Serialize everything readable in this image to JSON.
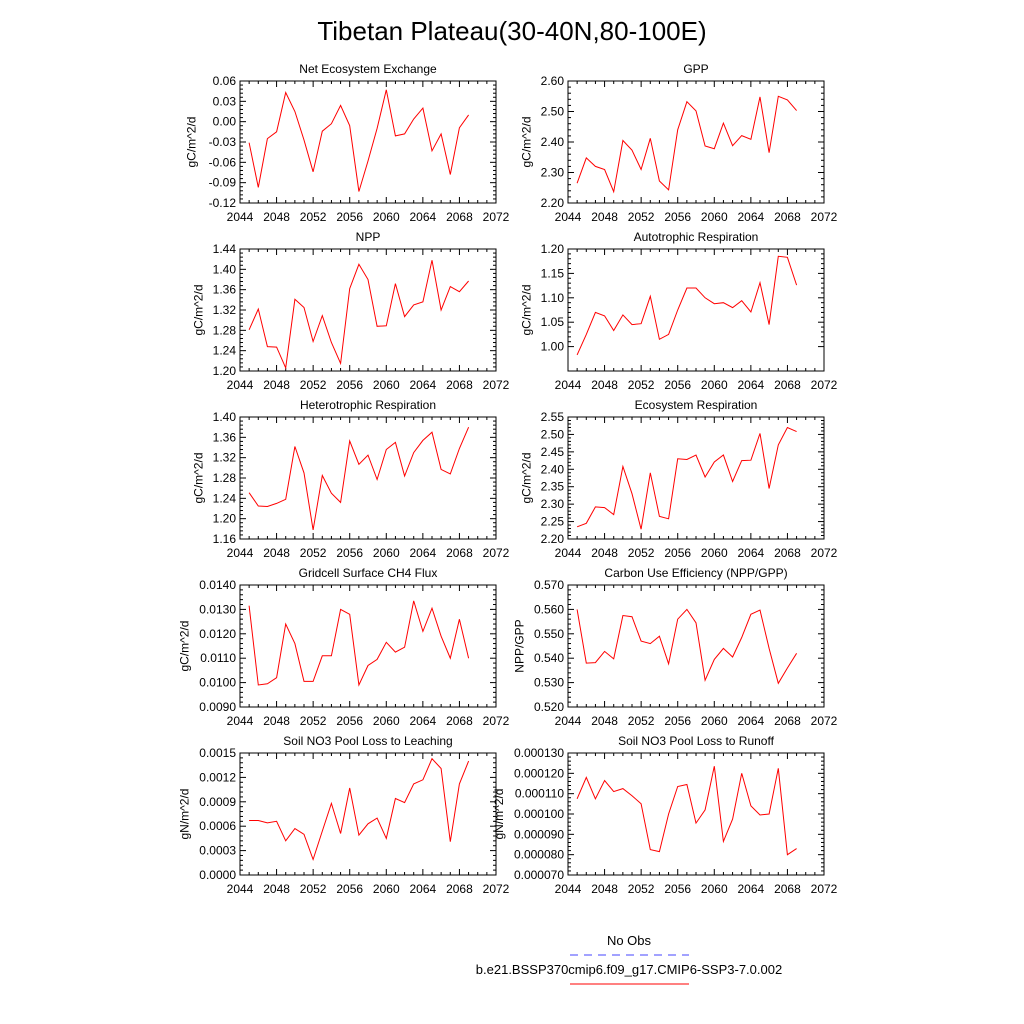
{
  "title": "Tibetan Plateau(30-40N,80-100E)",
  "colors": {
    "model": "#ff0000",
    "obs": "#4444ff",
    "axis": "#000000"
  },
  "legend": {
    "entries": [
      {
        "label": "No Obs",
        "color": "#4444ff",
        "style": "dashed"
      },
      {
        "label": "b.e21.BSSP370cmip6.f09_g17.CMIP6-SSP3-7.0.002",
        "color": "#ff0000",
        "style": "solid"
      }
    ]
  },
  "chart_data": [
    {
      "type": "line",
      "title": "Net Ecosystem Exchange",
      "xlabel": "",
      "ylabel": "gC/m^2/d",
      "xlim": [
        2044,
        2072
      ],
      "ylim": [
        -0.12,
        0.06
      ],
      "xticks": [
        "2044",
        "2048",
        "2052",
        "2056",
        "2060",
        "2064",
        "2068",
        "2072"
      ],
      "yticks": [
        "-0.12",
        "-0.09",
        "-0.06",
        "-0.03",
        "0.00",
        "0.03",
        "0.06"
      ],
      "x": [
        2045,
        2046,
        2047,
        2048,
        2049,
        2050,
        2051,
        2052,
        2053,
        2054,
        2055,
        2056,
        2057,
        2058,
        2059,
        2060,
        2061,
        2062,
        2063,
        2064,
        2065,
        2066,
        2067,
        2068,
        2069
      ],
      "values": [
        -0.031,
        -0.097,
        -0.025,
        -0.015,
        0.043,
        0.015,
        -0.027,
        -0.074,
        -0.014,
        -0.003,
        0.024,
        -0.006,
        -0.103,
        -0.058,
        -0.01,
        0.047,
        -0.021,
        -0.018,
        0.004,
        0.02,
        -0.043,
        -0.018,
        -0.078,
        -0.009,
        0.01
      ]
    },
    {
      "type": "line",
      "title": "GPP",
      "xlabel": "",
      "ylabel": "gC/m^2/d",
      "xlim": [
        2044,
        2072
      ],
      "ylim": [
        2.2,
        2.6
      ],
      "xticks": [
        "2044",
        "2048",
        "2052",
        "2056",
        "2060",
        "2064",
        "2068",
        "2072"
      ],
      "yticks": [
        "2.20",
        "2.30",
        "2.40",
        "2.50",
        "2.60"
      ],
      "x": [
        2045,
        2046,
        2047,
        2048,
        2049,
        2050,
        2051,
        2052,
        2053,
        2054,
        2055,
        2056,
        2057,
        2058,
        2059,
        2060,
        2061,
        2062,
        2063,
        2064,
        2065,
        2066,
        2067,
        2068,
        2069
      ],
      "values": [
        2.265,
        2.348,
        2.32,
        2.31,
        2.237,
        2.405,
        2.373,
        2.31,
        2.412,
        2.272,
        2.243,
        2.44,
        2.532,
        2.502,
        2.387,
        2.378,
        2.462,
        2.388,
        2.421,
        2.409,
        2.548,
        2.365,
        2.55,
        2.538,
        2.503
      ]
    },
    {
      "type": "line",
      "title": "NPP",
      "xlabel": "",
      "ylabel": "gC/m^2/d",
      "xlim": [
        2044,
        2072
      ],
      "ylim": [
        1.2,
        1.44
      ],
      "xticks": [
        "2044",
        "2048",
        "2052",
        "2056",
        "2060",
        "2064",
        "2068",
        "2072"
      ],
      "yticks": [
        "1.20",
        "1.24",
        "1.28",
        "1.32",
        "1.36",
        "1.40",
        "1.44"
      ],
      "x": [
        2045,
        2046,
        2047,
        2048,
        2049,
        2050,
        2051,
        2052,
        2053,
        2054,
        2055,
        2056,
        2057,
        2058,
        2059,
        2060,
        2061,
        2062,
        2063,
        2064,
        2065,
        2066,
        2067,
        2068,
        2069
      ],
      "values": [
        1.281,
        1.322,
        1.248,
        1.247,
        1.206,
        1.341,
        1.325,
        1.258,
        1.309,
        1.256,
        1.215,
        1.362,
        1.41,
        1.38,
        1.288,
        1.289,
        1.372,
        1.307,
        1.33,
        1.336,
        1.418,
        1.32,
        1.366,
        1.356,
        1.377
      ]
    },
    {
      "type": "line",
      "title": "Autotrophic Respiration",
      "xlabel": "",
      "ylabel": "gC/m^2/d",
      "xlim": [
        2044,
        2072
      ],
      "ylim": [
        0.95,
        1.2
      ],
      "xticks": [
        "2044",
        "2048",
        "2052",
        "2056",
        "2060",
        "2064",
        "2068",
        "2072"
      ],
      "yticks": [
        "1.00",
        "1.05",
        "1.10",
        "1.15",
        "1.20"
      ],
      "x": [
        2045,
        2046,
        2047,
        2048,
        2049,
        2050,
        2051,
        2052,
        2053,
        2054,
        2055,
        2056,
        2057,
        2058,
        2059,
        2060,
        2061,
        2062,
        2063,
        2064,
        2065,
        2066,
        2067,
        2068,
        2069
      ],
      "values": [
        0.983,
        1.025,
        1.07,
        1.063,
        1.033,
        1.065,
        1.045,
        1.047,
        1.103,
        1.015,
        1.025,
        1.075,
        1.12,
        1.12,
        1.1,
        1.088,
        1.09,
        1.08,
        1.094,
        1.071,
        1.131,
        1.045,
        1.185,
        1.183,
        1.126
      ]
    },
    {
      "type": "line",
      "title": "Heterotrophic Respiration",
      "xlabel": "",
      "ylabel": "gC/m^2/d",
      "xlim": [
        2044,
        2072
      ],
      "ylim": [
        1.16,
        1.4
      ],
      "xticks": [
        "2044",
        "2048",
        "2052",
        "2056",
        "2060",
        "2064",
        "2068",
        "2072"
      ],
      "yticks": [
        "1.16",
        "1.20",
        "1.24",
        "1.28",
        "1.32",
        "1.36",
        "1.40"
      ],
      "x": [
        2045,
        2046,
        2047,
        2048,
        2049,
        2050,
        2051,
        2052,
        2053,
        2054,
        2055,
        2056,
        2057,
        2058,
        2059,
        2060,
        2061,
        2062,
        2063,
        2064,
        2065,
        2066,
        2067,
        2068,
        2069
      ],
      "values": [
        1.251,
        1.225,
        1.224,
        1.23,
        1.238,
        1.342,
        1.29,
        1.178,
        1.285,
        1.25,
        1.232,
        1.353,
        1.307,
        1.325,
        1.277,
        1.336,
        1.35,
        1.284,
        1.33,
        1.354,
        1.37,
        1.297,
        1.288,
        1.338,
        1.38
      ]
    },
    {
      "type": "line",
      "title": "Ecosystem Respiration",
      "xlabel": "",
      "ylabel": "gC/m^2/d",
      "xlim": [
        2044,
        2072
      ],
      "ylim": [
        2.2,
        2.55
      ],
      "xticks": [
        "2044",
        "2048",
        "2052",
        "2056",
        "2060",
        "2064",
        "2068",
        "2072"
      ],
      "yticks": [
        "2.20",
        "2.25",
        "2.30",
        "2.35",
        "2.40",
        "2.45",
        "2.50",
        "2.55"
      ],
      "x": [
        2045,
        2046,
        2047,
        2048,
        2049,
        2050,
        2051,
        2052,
        2053,
        2054,
        2055,
        2056,
        2057,
        2058,
        2059,
        2060,
        2061,
        2062,
        2063,
        2064,
        2065,
        2066,
        2067,
        2068,
        2069
      ],
      "values": [
        2.235,
        2.245,
        2.292,
        2.29,
        2.27,
        2.408,
        2.33,
        2.228,
        2.39,
        2.265,
        2.258,
        2.43,
        2.428,
        2.441,
        2.378,
        2.421,
        2.441,
        2.365,
        2.425,
        2.426,
        2.503,
        2.345,
        2.47,
        2.52,
        2.508
      ]
    },
    {
      "type": "line",
      "title": "Gridcell Surface CH4 Flux",
      "xlabel": "",
      "ylabel": "gC/m^2/d",
      "xlim": [
        2044,
        2072
      ],
      "ylim": [
        0.009,
        0.014
      ],
      "xticks": [
        "2044",
        "2048",
        "2052",
        "2056",
        "2060",
        "2064",
        "2068",
        "2072"
      ],
      "yticks": [
        "0.0090",
        "0.0100",
        "0.0110",
        "0.0120",
        "0.0130",
        "0.0140"
      ],
      "x": [
        2045,
        2046,
        2047,
        2048,
        2049,
        2050,
        2051,
        2052,
        2053,
        2054,
        2055,
        2056,
        2057,
        2058,
        2059,
        2060,
        2061,
        2062,
        2063,
        2064,
        2065,
        2066,
        2067,
        2068,
        2069
      ],
      "values": [
        0.01315,
        0.0099,
        0.00995,
        0.0102,
        0.0124,
        0.0116,
        0.01005,
        0.01005,
        0.0111,
        0.0111,
        0.013,
        0.0128,
        0.0099,
        0.0107,
        0.01095,
        0.01165,
        0.01125,
        0.01145,
        0.01335,
        0.0121,
        0.01305,
        0.0119,
        0.011,
        0.0126,
        0.011
      ]
    },
    {
      "type": "line",
      "title": "Carbon Use Efficiency (NPP/GPP)",
      "xlabel": "",
      "ylabel": "NPP/GPP",
      "xlim": [
        2044,
        2072
      ],
      "ylim": [
        0.52,
        0.57
      ],
      "xticks": [
        "2044",
        "2048",
        "2052",
        "2056",
        "2060",
        "2064",
        "2068",
        "2072"
      ],
      "yticks": [
        "0.520",
        "0.530",
        "0.540",
        "0.550",
        "0.560",
        "0.570"
      ],
      "x": [
        2045,
        2046,
        2047,
        2048,
        2049,
        2050,
        2051,
        2052,
        2053,
        2054,
        2055,
        2056,
        2057,
        2058,
        2059,
        2060,
        2061,
        2062,
        2063,
        2064,
        2065,
        2066,
        2067,
        2068,
        2069
      ],
      "values": [
        0.56,
        0.538,
        0.5382,
        0.5428,
        0.5397,
        0.5575,
        0.557,
        0.547,
        0.546,
        0.549,
        0.5377,
        0.556,
        0.56,
        0.5545,
        0.531,
        0.5395,
        0.544,
        0.5405,
        0.5485,
        0.558,
        0.5597,
        0.544,
        0.5297,
        0.536,
        0.542
      ]
    },
    {
      "type": "line",
      "title": "Soil NO3 Pool Loss to Leaching",
      "xlabel": "",
      "ylabel": "gN/m^2/d",
      "xlim": [
        2044,
        2072
      ],
      "ylim": [
        0.0,
        0.0015
      ],
      "xticks": [
        "2044",
        "2048",
        "2052",
        "2056",
        "2060",
        "2064",
        "2068",
        "2072"
      ],
      "yticks": [
        "0.0000",
        "0.0003",
        "0.0006",
        "0.0009",
        "0.0012",
        "0.0015"
      ],
      "x": [
        2045,
        2046,
        2047,
        2048,
        2049,
        2050,
        2051,
        2052,
        2053,
        2054,
        2055,
        2056,
        2057,
        2058,
        2059,
        2060,
        2061,
        2062,
        2063,
        2064,
        2065,
        2066,
        2067,
        2068,
        2069
      ],
      "values": [
        0.00067,
        0.00067,
        0.00064,
        0.00066,
        0.00042,
        0.00057,
        0.0005,
        0.00019,
        0.00054,
        0.00088,
        0.00051,
        0.00107,
        0.00049,
        0.00063,
        0.0007,
        0.00045,
        0.00094,
        0.00089,
        0.00112,
        0.00117,
        0.00143,
        0.00131,
        0.00041,
        0.00112,
        0.0014
      ]
    },
    {
      "type": "line",
      "title": "Soil NO3 Pool Loss to Runoff",
      "xlabel": "",
      "ylabel": "gN/m^2/d",
      "xlim": [
        2044,
        2072
      ],
      "ylim": [
        7e-05,
        0.00013
      ],
      "xticks": [
        "2044",
        "2048",
        "2052",
        "2056",
        "2060",
        "2064",
        "2068",
        "2072"
      ],
      "yticks": [
        "0.000070",
        "0.000080",
        "0.000090",
        "0.000100",
        "0.000110",
        "0.000120",
        "0.000130"
      ],
      "x": [
        2045,
        2046,
        2047,
        2048,
        2049,
        2050,
        2051,
        2052,
        2053,
        2054,
        2055,
        2056,
        2057,
        2058,
        2059,
        2060,
        2061,
        2062,
        2063,
        2064,
        2065,
        2066,
        2067,
        2068,
        2069
      ],
      "values": [
        0.0001075,
        0.000118,
        0.0001075,
        0.0001165,
        0.000111,
        0.0001125,
        0.000109,
        0.000105,
        8.25e-05,
        8.15e-05,
        0.0001,
        0.0001135,
        0.0001145,
        9.55e-05,
        0.000102,
        0.0001235,
        8.65e-05,
        9.75e-05,
        0.00012,
        0.000104,
        9.95e-05,
        0.0001,
        0.0001225,
        8e-05,
        8.3e-05
      ]
    }
  ]
}
